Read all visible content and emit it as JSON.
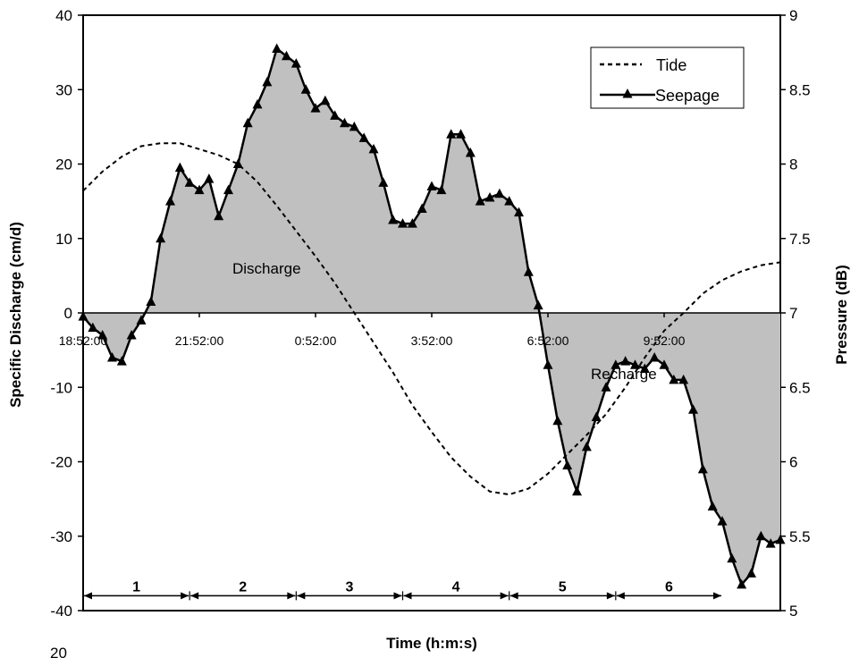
{
  "chart_data": {
    "type": "area",
    "xlabel": "Time (h:m:s)",
    "ylabel": "Specific Discharge (cm/d)",
    "y2label": "Pressure (dB)",
    "ylim": [
      -40,
      40
    ],
    "y2lim": [
      5,
      9
    ],
    "xlim": [
      0,
      72
    ],
    "yticks": [
      "-40",
      "-30",
      "-20",
      "-10",
      "0",
      "10",
      "20",
      "30",
      "40"
    ],
    "y2ticks": [
      "5",
      "5.5",
      "6",
      "6.5",
      "7",
      "7.5",
      "8",
      "8.5",
      "9"
    ],
    "x_tick_labels": [
      "18:52:00",
      "21:52:00",
      "0:52:00",
      "3:52:00",
      "6:52:00",
      "9:52:00"
    ],
    "legend": {
      "position": "top-right",
      "entries": [
        "Tide",
        "Seepage"
      ]
    },
    "annotations": [
      "Discharge",
      "Recharge"
    ],
    "periods": [
      "1",
      "2",
      "3",
      "4",
      "5",
      "6"
    ],
    "stray_text": "20",
    "series": [
      {
        "name": "Seepage",
        "axis": "left",
        "style": "solid-triangle",
        "x": [
          0,
          1,
          2,
          3,
          4,
          5,
          6,
          7,
          8,
          9,
          10,
          11,
          12,
          13,
          14,
          15,
          16,
          17,
          18,
          19,
          20,
          21,
          22,
          23,
          24,
          25,
          26,
          27,
          28,
          29,
          30,
          31,
          32,
          33,
          34,
          35,
          36,
          37,
          38,
          39,
          40,
          41,
          42,
          43,
          44,
          45,
          46,
          47,
          48,
          49,
          50,
          51,
          52,
          53,
          54,
          55,
          56,
          57,
          58,
          59,
          60,
          61,
          62,
          63,
          64,
          65,
          66,
          67,
          68,
          69,
          70,
          71,
          72
        ],
        "values": [
          -0.5,
          -2,
          -3,
          -6,
          -6.5,
          -3,
          -1,
          1.5,
          10,
          15,
          19.5,
          17.5,
          16.5,
          18,
          13,
          16.5,
          20,
          25.5,
          28,
          31,
          35.5,
          34.5,
          33.5,
          30,
          27.5,
          28.5,
          26.5,
          25.5,
          25,
          23.5,
          22,
          17.5,
          12.5,
          12,
          12,
          14,
          17,
          16.5,
          24,
          24,
          21.5,
          15,
          15.5,
          16,
          15,
          13.5,
          5.5,
          1,
          -7,
          -14.5,
          -20.5,
          -24,
          -18,
          -14,
          -10,
          -7,
          -6.5,
          -7,
          -7.5,
          -6,
          -7,
          -9,
          -9,
          -13,
          -21,
          -26,
          -28,
          -33,
          -36.5,
          -35,
          -30,
          -31,
          -30.5
        ]
      },
      {
        "name": "Tide",
        "axis": "right",
        "style": "dashed",
        "x": [
          0,
          2,
          4,
          6,
          8,
          10,
          12,
          14,
          16,
          18,
          20,
          22,
          24,
          26,
          28,
          30,
          32,
          34,
          36,
          38,
          40,
          42,
          44,
          46,
          48,
          50,
          52,
          54,
          56,
          58,
          60,
          62,
          64,
          66,
          68,
          70,
          72
        ],
        "values": [
          7.82,
          7.95,
          8.05,
          8.12,
          8.14,
          8.14,
          8.1,
          8.06,
          8.0,
          7.88,
          7.72,
          7.55,
          7.38,
          7.2,
          7.0,
          6.8,
          6.6,
          6.38,
          6.2,
          6.03,
          5.9,
          5.8,
          5.78,
          5.82,
          5.92,
          6.05,
          6.18,
          6.32,
          6.5,
          6.7,
          6.88,
          7.0,
          7.13,
          7.22,
          7.28,
          7.32,
          7.34
        ]
      }
    ]
  }
}
